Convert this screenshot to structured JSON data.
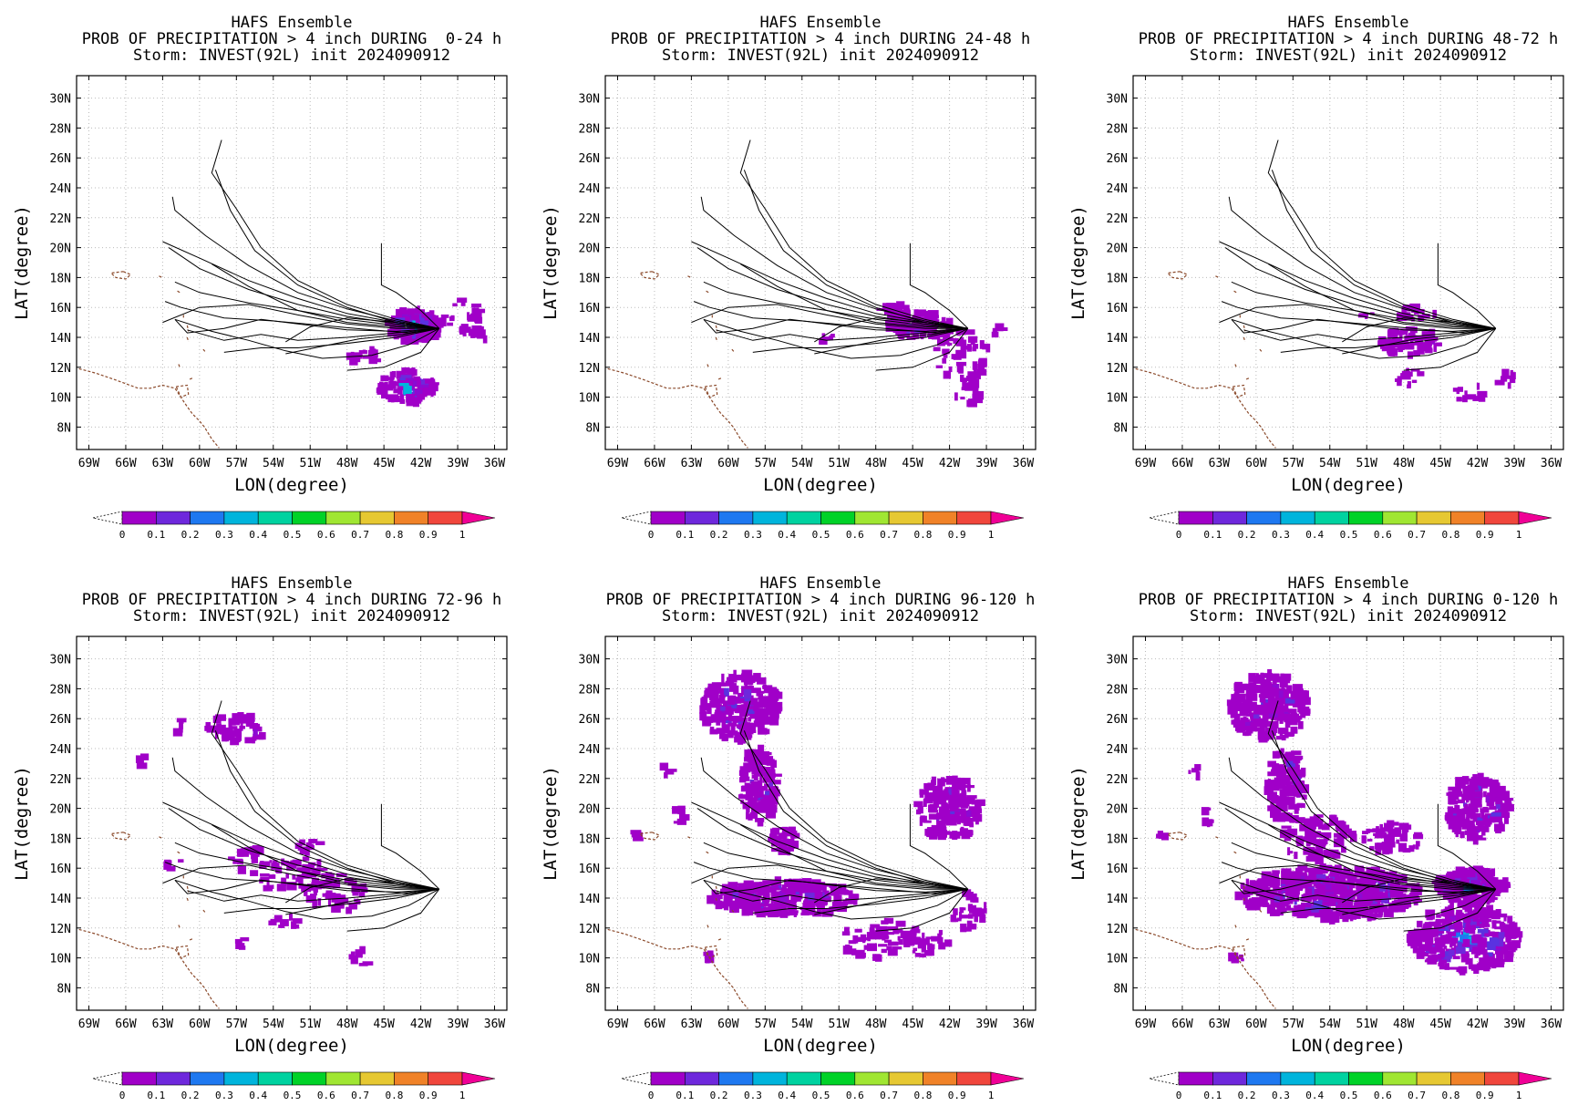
{
  "common": {
    "ensemble": "HAFS Ensemble",
    "storm": "Storm: INVEST(92L) init 2024090912",
    "xlabel": "LON(degree)",
    "ylabel": "LAT(degree)",
    "lon_ticks": [
      "69W",
      "66W",
      "63W",
      "60W",
      "57W",
      "54W",
      "51W",
      "48W",
      "45W",
      "42W",
      "39W",
      "36W"
    ],
    "lat_ticks": [
      "8N",
      "10N",
      "12N",
      "14N",
      "16N",
      "18N",
      "20N",
      "22N",
      "24N",
      "26N",
      "28N",
      "30N"
    ],
    "colorbar": {
      "labels": [
        "0",
        "0.1",
        "0.2",
        "0.3",
        "0.4",
        "0.5",
        "0.6",
        "0.7",
        "0.8",
        "0.9",
        "1"
      ],
      "colors": [
        "#a000c8",
        "#6e28dc",
        "#1e78f0",
        "#00b4dc",
        "#00d2a0",
        "#00d228",
        "#a0e632",
        "#e6c832",
        "#f08228",
        "#f0463c"
      ],
      "over_color": "#f00096"
    }
  },
  "panels": [
    {
      "id": "p1",
      "title": "PROB OF PRECIPITATION > 4 inch DURING  0-24 h"
    },
    {
      "id": "p2",
      "title": "PROB OF PRECIPITATION > 4 inch DURING 24-48 h"
    },
    {
      "id": "p3",
      "title": "PROB OF PRECIPITATION > 4 inch DURING 48-72 h"
    },
    {
      "id": "p4",
      "title": "PROB OF PRECIPITATION > 4 inch DURING 72-96 h"
    },
    {
      "id": "p5",
      "title": "PROB OF PRECIPITATION > 4 inch DURING 96-120 h"
    },
    {
      "id": "p6",
      "title": "PROB OF PRECIPITATION > 4 inch DURING 0-120 h"
    }
  ]
}
